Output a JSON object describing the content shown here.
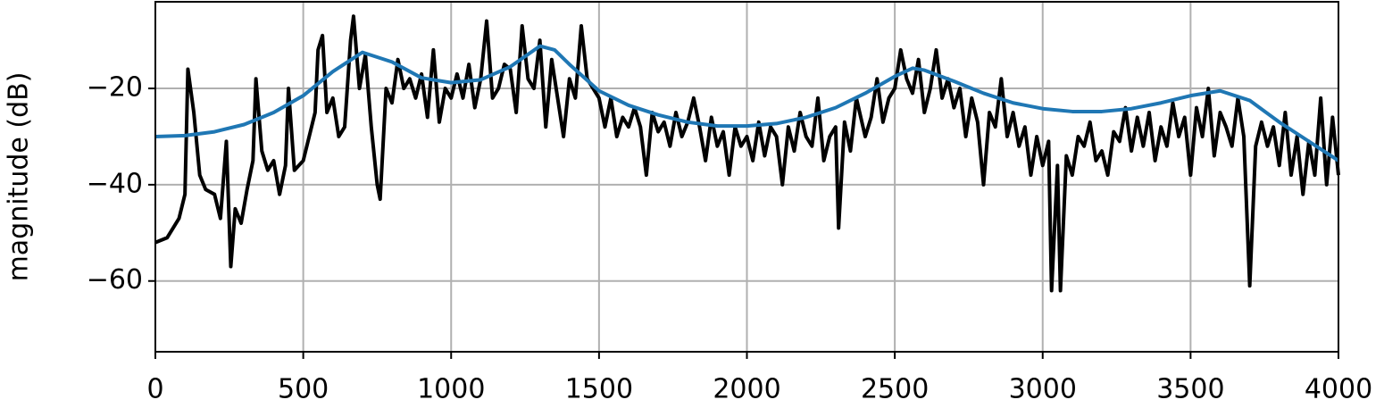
{
  "chart_data": {
    "type": "line",
    "y_label": "magnitude (dB)",
    "xlim": [
      0,
      4000
    ],
    "xticks": [
      0,
      500,
      1000,
      1500,
      2000,
      2500,
      3000,
      3500,
      4000
    ],
    "ylim": [
      -74.7,
      -2
    ],
    "yticks": [
      {
        "value": -60,
        "label": "−60"
      },
      {
        "value": -40,
        "label": "−40"
      },
      {
        "value": -20,
        "label": "−20"
      }
    ],
    "grid": true,
    "series": [
      {
        "color": "#000000",
        "x": [
          0,
          40,
          80,
          100,
          110,
          130,
          150,
          170,
          200,
          220,
          240,
          255,
          270,
          290,
          310,
          330,
          340,
          360,
          380,
          400,
          420,
          440,
          450,
          470,
          500,
          520,
          540,
          550,
          565,
          580,
          600,
          620,
          640,
          660,
          670,
          690,
          710,
          730,
          750,
          760,
          780,
          800,
          820,
          840,
          860,
          880,
          900,
          920,
          940,
          960,
          980,
          1000,
          1020,
          1040,
          1060,
          1080,
          1100,
          1120,
          1140,
          1160,
          1180,
          1200,
          1220,
          1240,
          1260,
          1280,
          1300,
          1320,
          1340,
          1360,
          1380,
          1400,
          1420,
          1440,
          1460,
          1480,
          1500,
          1520,
          1540,
          1560,
          1580,
          1600,
          1620,
          1640,
          1660,
          1680,
          1700,
          1720,
          1740,
          1760,
          1780,
          1800,
          1820,
          1840,
          1860,
          1880,
          1900,
          1920,
          1940,
          1960,
          1980,
          2000,
          2020,
          2040,
          2060,
          2080,
          2100,
          2120,
          2140,
          2160,
          2180,
          2200,
          2220,
          2240,
          2260,
          2280,
          2300,
          2310,
          2330,
          2350,
          2370,
          2400,
          2420,
          2440,
          2460,
          2480,
          2500,
          2520,
          2540,
          2560,
          2580,
          2600,
          2620,
          2640,
          2660,
          2680,
          2700,
          2720,
          2740,
          2760,
          2780,
          2800,
          2820,
          2840,
          2860,
          2880,
          2900,
          2920,
          2940,
          2960,
          2980,
          3000,
          3020,
          3030,
          3050,
          3060,
          3080,
          3100,
          3120,
          3140,
          3160,
          3180,
          3200,
          3220,
          3240,
          3260,
          3280,
          3300,
          3320,
          3340,
          3360,
          3380,
          3400,
          3420,
          3440,
          3460,
          3480,
          3500,
          3520,
          3540,
          3560,
          3580,
          3600,
          3620,
          3640,
          3660,
          3680,
          3700,
          3720,
          3740,
          3760,
          3780,
          3800,
          3820,
          3840,
          3860,
          3880,
          3900,
          3920,
          3940,
          3960,
          3980,
          4000
        ],
        "values": [
          -52,
          -51,
          -47,
          -42,
          -16,
          -25,
          -38,
          -41,
          -42,
          -47,
          -31,
          -57,
          -45,
          -48,
          -41,
          -35,
          -18,
          -33,
          -37,
          -35,
          -42,
          -36,
          -20,
          -37,
          -35,
          -30,
          -25,
          -12,
          -9,
          -25,
          -22,
          -30,
          -28,
          -10,
          -5,
          -20,
          -13,
          -28,
          -40,
          -43,
          -20,
          -23,
          -14,
          -20,
          -18,
          -22,
          -17,
          -26,
          -12,
          -27,
          -20,
          -22,
          -17,
          -22,
          -15,
          -24,
          -18,
          -6,
          -22,
          -20,
          -15,
          -16,
          -25,
          -7,
          -18,
          -20,
          -10,
          -28,
          -14,
          -22,
          -30,
          -18,
          -22,
          -7,
          -18,
          -20,
          -22,
          -28,
          -22,
          -30,
          -26,
          -28,
          -24,
          -28,
          -38,
          -25,
          -29,
          -27,
          -32,
          -25,
          -30,
          -27,
          -22,
          -28,
          -35,
          -26,
          -32,
          -29,
          -38,
          -28,
          -32,
          -30,
          -35,
          -27,
          -34,
          -28,
          -30,
          -40,
          -28,
          -33,
          -25,
          -30,
          -32,
          -22,
          -35,
          -30,
          -28,
          -49,
          -27,
          -33,
          -22,
          -30,
          -26,
          -18,
          -27,
          -22,
          -20,
          -12,
          -18,
          -21,
          -14,
          -25,
          -20,
          -12,
          -22,
          -18,
          -24,
          -20,
          -30,
          -22,
          -27,
          -40,
          -25,
          -28,
          -18,
          -30,
          -25,
          -32,
          -28,
          -38,
          -30,
          -36,
          -31,
          -62,
          -36,
          -62,
          -34,
          -38,
          -30,
          -32,
          -27,
          -35,
          -33,
          -38,
          -29,
          -31,
          -24,
          -33,
          -26,
          -32,
          -25,
          -35,
          -28,
          -32,
          -23,
          -30,
          -26,
          -38,
          -24,
          -30,
          -20,
          -34,
          -25,
          -28,
          -32,
          -22,
          -30,
          -61,
          -32,
          -27,
          -32,
          -28,
          -36,
          -25,
          -38,
          -30,
          -42,
          -31,
          -38,
          -22,
          -40,
          -26,
          -38
        ]
      },
      {
        "color": "#1f77b4",
        "x": [
          0,
          100,
          200,
          300,
          400,
          500,
          600,
          700,
          800,
          900,
          1000,
          1100,
          1200,
          1300,
          1350,
          1400,
          1500,
          1600,
          1700,
          1800,
          1900,
          2000,
          2100,
          2200,
          2300,
          2400,
          2500,
          2560,
          2600,
          2700,
          2800,
          2900,
          3000,
          3100,
          3200,
          3300,
          3400,
          3500,
          3600,
          3700,
          3800,
          3900,
          4000
        ],
        "values": [
          -30,
          -29.8,
          -29,
          -27.5,
          -25,
          -21.5,
          -16.5,
          -12.5,
          -14.5,
          -17.8,
          -18.8,
          -18.2,
          -15.5,
          -11.2,
          -12,
          -15,
          -20.5,
          -23.5,
          -25.5,
          -27,
          -27.8,
          -27.8,
          -27.3,
          -26,
          -24,
          -21,
          -17.5,
          -15.8,
          -16.2,
          -18.5,
          -21,
          -23,
          -24.2,
          -24.8,
          -24.8,
          -24.2,
          -23,
          -21.5,
          -20.5,
          -22.5,
          -27,
          -31,
          -35
        ]
      }
    ]
  }
}
